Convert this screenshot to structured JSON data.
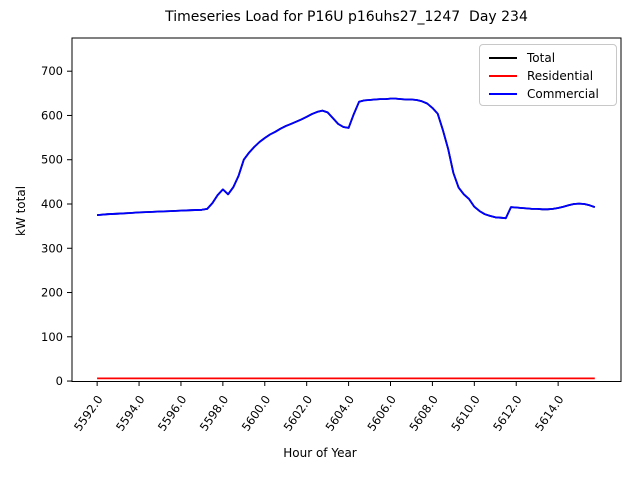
{
  "chart_data": {
    "type": "line",
    "title": "Timeseries Load for P16U p16uhs27_1247  Day 234",
    "xlabel": "Hour of Year",
    "ylabel": "kW total",
    "grid": false,
    "legend_position": "upper right",
    "xlim": [
      5590.8,
      5617.0
    ],
    "ylim": [
      -1,
      775
    ],
    "xticks": [
      5592,
      5594,
      5596,
      5598,
      5600,
      5602,
      5604,
      5606,
      5608,
      5610,
      5612,
      5614
    ],
    "xtick_labels": [
      "5592.0",
      "5594.0",
      "5596.0",
      "5598.0",
      "5600.0",
      "5602.0",
      "5604.0",
      "5606.0",
      "5608.0",
      "5610.0",
      "5612.0",
      "5614.0"
    ],
    "yticks": [
      0,
      100,
      200,
      300,
      400,
      500,
      600,
      700
    ],
    "ytick_labels": [
      "0",
      "100",
      "200",
      "300",
      "400",
      "500",
      "600",
      "700"
    ],
    "x": [
      5592.0,
      5592.5,
      5593.0,
      5593.5,
      5594.0,
      5594.5,
      5595.0,
      5595.5,
      5596.0,
      5596.5,
      5597.0,
      5597.25,
      5597.5,
      5597.75,
      5598.0,
      5598.25,
      5598.5,
      5598.75,
      5599.0,
      5599.25,
      5599.5,
      5599.75,
      5600.0,
      5600.25,
      5600.5,
      5600.75,
      5601.0,
      5601.25,
      5601.5,
      5601.75,
      5602.0,
      5602.25,
      5602.5,
      5602.75,
      5603.0,
      5603.25,
      5603.5,
      5603.75,
      5604.0,
      5604.25,
      5604.5,
      5604.75,
      5605.0,
      5605.25,
      5605.5,
      5605.75,
      5606.0,
      5606.25,
      5606.5,
      5606.75,
      5607.0,
      5607.25,
      5607.5,
      5607.75,
      5608.0,
      5608.25,
      5608.5,
      5608.75,
      5609.0,
      5609.25,
      5609.5,
      5609.75,
      5610.0,
      5610.25,
      5610.5,
      5610.75,
      5611.0,
      5611.25,
      5611.5,
      5611.75,
      5612.0,
      5612.25,
      5612.5,
      5612.75,
      5613.0,
      5613.25,
      5613.5,
      5613.75,
      5614.0,
      5614.25,
      5614.5,
      5614.75,
      5615.0,
      5615.25,
      5615.5,
      5615.75
    ],
    "series": [
      {
        "name": "Total",
        "color": "#000000",
        "values": [
          375,
          377,
          378,
          379.5,
          381,
          382,
          383,
          384,
          385,
          386,
          387,
          389,
          402,
          420,
          433,
          422,
          438,
          464,
          500,
          516,
          529,
          540,
          549,
          557,
          563,
          570,
          576,
          581,
          586,
          591,
          597,
          603,
          608,
          611,
          607,
          594,
          581,
          574,
          572,
          603,
          631,
          634,
          635,
          636,
          637,
          637,
          638,
          638,
          637,
          636,
          636,
          635,
          632,
          627,
          617,
          604,
          567,
          525,
          470,
          437,
          422,
          411,
          394,
          384,
          377,
          373,
          370,
          369,
          368,
          393,
          392,
          391,
          390,
          389,
          389,
          388,
          388,
          389,
          391,
          394,
          397,
          400,
          401,
          400,
          397,
          393
        ]
      },
      {
        "name": "Residential",
        "color": "#ff0000",
        "values": [
          6,
          6,
          6,
          6,
          6,
          6,
          6,
          6,
          6,
          6,
          6,
          6,
          6,
          6,
          6,
          6,
          6,
          6,
          6,
          6,
          6,
          6,
          6,
          6,
          6,
          6,
          6,
          6,
          6,
          6,
          6,
          6,
          6,
          6,
          6,
          6,
          6,
          6,
          6,
          6,
          6,
          6,
          6,
          6,
          6,
          6,
          6,
          6,
          6,
          6,
          6,
          6,
          6,
          6,
          6,
          6,
          6,
          6,
          6,
          6,
          6,
          6,
          6,
          6,
          6,
          6,
          6,
          6,
          6,
          6,
          6,
          6,
          6,
          6,
          6,
          6,
          6,
          6,
          6,
          6,
          6,
          6,
          6,
          6,
          6,
          6
        ]
      },
      {
        "name": "Commercial",
        "color": "#0000ff",
        "values": [
          375,
          377,
          378,
          379.5,
          381,
          382,
          383,
          384,
          385,
          386,
          387,
          389,
          402,
          420,
          433,
          422,
          438,
          464,
          500,
          516,
          529,
          540,
          549,
          557,
          563,
          570,
          576,
          581,
          586,
          591,
          597,
          603,
          608,
          611,
          607,
          594,
          581,
          574,
          572,
          603,
          631,
          634,
          635,
          636,
          637,
          637,
          638,
          638,
          637,
          636,
          636,
          635,
          632,
          627,
          617,
          604,
          567,
          525,
          470,
          437,
          422,
          411,
          394,
          384,
          377,
          373,
          370,
          369,
          368,
          393,
          392,
          391,
          390,
          389,
          389,
          388,
          388,
          389,
          391,
          394,
          397,
          400,
          401,
          400,
          397,
          393
        ]
      }
    ],
    "colors": {
      "spine": "#000000",
      "tick_label": "#000000",
      "background": "#ffffff",
      "legend_border": "#c8c8c8"
    }
  }
}
